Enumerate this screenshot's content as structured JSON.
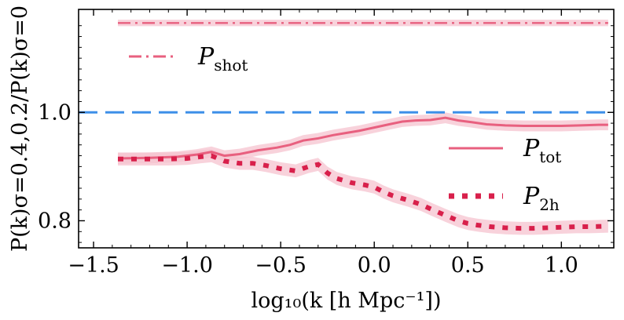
{
  "chart_data": {
    "type": "line",
    "xlabel": "log₁₀(k [h Mpc⁻¹])",
    "ylabel": "P(k)σ=0.4,0.2/P(k)σ=0",
    "xlim": [
      -1.58,
      1.28
    ],
    "ylim": [
      0.75,
      1.19
    ],
    "xticks": [
      -1.5,
      -1.0,
      -0.5,
      0.0,
      0.5,
      1.0
    ],
    "xtick_labels": [
      "−1.5",
      "−1.0",
      "−0.5",
      "0.0",
      "0.5",
      "1.0"
    ],
    "yticks": [
      0.8,
      1.0
    ],
    "ytick_labels": [
      "0.8",
      "1.0"
    ],
    "reference_line": {
      "y": 1.0,
      "color": "#3d8fe8",
      "style": "dashed"
    },
    "series": [
      {
        "name": "P_shot",
        "label_main": "P",
        "label_sub": "shot",
        "style": "dashdot",
        "color": "#e8607f",
        "band_color": "#f6c3cf",
        "x": [
          -1.37,
          1.25
        ],
        "y": [
          1.165,
          1.165
        ],
        "band": 0.006
      },
      {
        "name": "P_tot",
        "label_main": "P",
        "label_sub": "tot",
        "style": "solid",
        "color": "#e8607f",
        "band_color": "#f6c3cf",
        "x": [
          -1.37,
          -1.2,
          -1.05,
          -0.95,
          -0.87,
          -0.8,
          -0.72,
          -0.62,
          -0.52,
          -0.45,
          -0.38,
          -0.3,
          -0.22,
          -0.15,
          -0.08,
          0.0,
          0.08,
          0.15,
          0.22,
          0.3,
          0.38,
          0.45,
          0.52,
          0.6,
          0.7,
          0.8,
          0.9,
          1.0,
          1.1,
          1.2,
          1.25
        ],
        "y": [
          0.915,
          0.916,
          0.918,
          0.922,
          0.927,
          0.92,
          0.923,
          0.93,
          0.935,
          0.94,
          0.948,
          0.952,
          0.958,
          0.962,
          0.966,
          0.972,
          0.978,
          0.983,
          0.985,
          0.986,
          0.99,
          0.985,
          0.982,
          0.978,
          0.976,
          0.975,
          0.975,
          0.975,
          0.976,
          0.977,
          0.977
        ],
        "band": 0.01
      },
      {
        "name": "P_2h",
        "label_main": "P",
        "label_sub": "2h",
        "style": "dotted",
        "color": "#d8204b",
        "band_color": "#f6c3cf",
        "x": [
          -1.37,
          -1.3,
          -1.2,
          -1.1,
          -1.0,
          -0.93,
          -0.87,
          -0.8,
          -0.72,
          -0.65,
          -0.58,
          -0.5,
          -0.42,
          -0.35,
          -0.3,
          -0.25,
          -0.2,
          -0.12,
          -0.05,
          0.0,
          0.05,
          0.1,
          0.18,
          0.25,
          0.3,
          0.38,
          0.45,
          0.5,
          0.55,
          0.62,
          0.7,
          0.78,
          0.85,
          0.92,
          1.0,
          1.08,
          1.15,
          1.25
        ],
        "y": [
          0.914,
          0.914,
          0.914,
          0.914,
          0.915,
          0.918,
          0.92,
          0.91,
          0.906,
          0.906,
          0.902,
          0.896,
          0.892,
          0.9,
          0.904,
          0.888,
          0.878,
          0.87,
          0.866,
          0.862,
          0.853,
          0.846,
          0.838,
          0.83,
          0.822,
          0.81,
          0.8,
          0.795,
          0.792,
          0.789,
          0.787,
          0.786,
          0.786,
          0.787,
          0.788,
          0.789,
          0.789,
          0.79
        ],
        "band": 0.012
      }
    ],
    "legend": [
      {
        "series": "P_shot",
        "position": "top-left"
      },
      {
        "series": "P_tot",
        "position": "right"
      },
      {
        "series": "P_2h",
        "position": "right"
      }
    ]
  }
}
